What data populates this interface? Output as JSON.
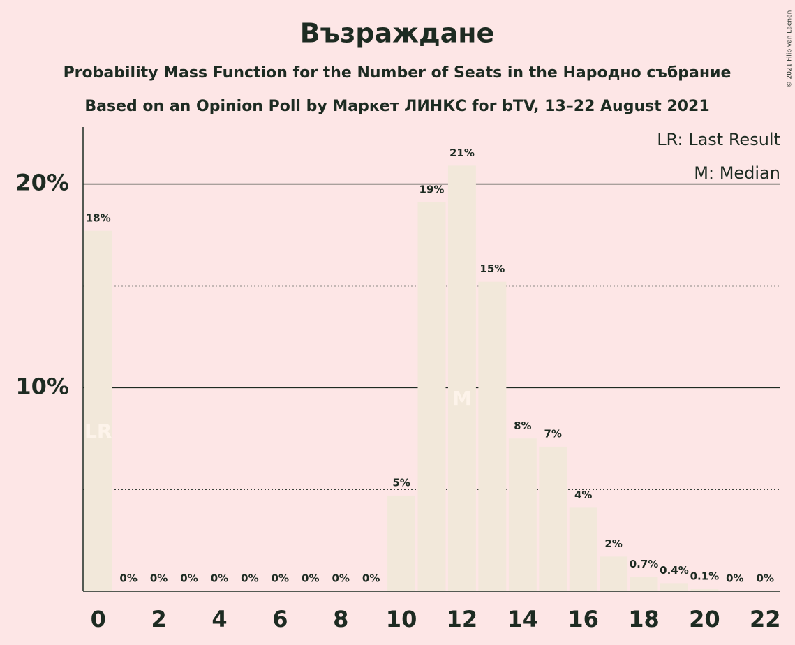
{
  "chart_data": {
    "type": "bar",
    "title": "Възраждане",
    "subtitle": "Probability Mass Function for the Number of Seats in the Народно събрание",
    "subtitle2": "Based on an Opinion Poll by Маркет ЛИНКС for bTV, 13–22 August 2021",
    "copyright": "© 2021 Filip van Laenen",
    "categories": [
      "0",
      null,
      "2",
      null,
      "4",
      null,
      "6",
      null,
      "8",
      null,
      "10",
      null,
      "12",
      null,
      "14",
      null,
      "16",
      null,
      "18",
      null,
      "20",
      null,
      "22"
    ],
    "values": [
      17.7,
      0,
      0,
      0,
      0,
      0,
      0,
      0,
      0,
      0,
      4.7,
      19.1,
      20.9,
      15.2,
      7.5,
      7.1,
      4.1,
      1.7,
      0.7,
      0.4,
      0.1,
      0,
      0
    ],
    "value_labels": [
      "18%",
      "0%",
      "0%",
      "0%",
      "0%",
      "0%",
      "0%",
      "0%",
      "0%",
      "0%",
      "5%",
      "19%",
      "21%",
      "15%",
      "8%",
      "7%",
      "4%",
      "2%",
      "0.7%",
      "0.4%",
      "0.1%",
      "0%",
      "0%"
    ],
    "color": "#f2e8da",
    "ylim": [
      0,
      22.8
    ],
    "yticks": [
      {
        "value": 10,
        "label": "10%"
      },
      {
        "value": 20,
        "label": "20%"
      }
    ],
    "minor_yticks": [
      5,
      15
    ],
    "grid": true,
    "annotations": [
      {
        "index": 0,
        "text": "LR"
      },
      {
        "index": 12,
        "text": "M"
      }
    ],
    "legend": [
      "LR: Last Result",
      "M: Median"
    ],
    "legend_position": "top-right"
  }
}
